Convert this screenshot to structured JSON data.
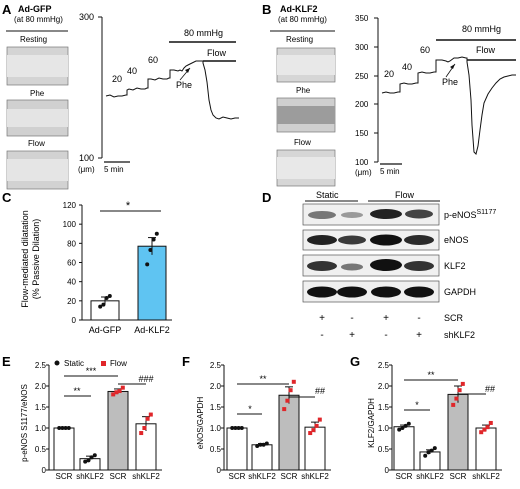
{
  "panels": {
    "A": {
      "letter": "A",
      "condition": "Ad-GFP",
      "pressure_note": "(at 80 mmHg)",
      "images": [
        "Resting",
        "Phe",
        "Flow"
      ],
      "pressure_labels": [
        "20",
        "40",
        "60"
      ],
      "bar_80": "80 mmHg",
      "bar_flow": "Flow",
      "phe": "Phe",
      "y_top": "300",
      "y_bottom": "100",
      "y_unit": "(μm)",
      "scale": "5 min"
    },
    "B": {
      "letter": "B",
      "condition": "Ad-KLF2",
      "pressure_note": "(at 80 mmHg)",
      "images": [
        "Resting",
        "Phe",
        "Flow"
      ],
      "pressure_labels": [
        "20",
        "40",
        "60"
      ],
      "bar_80": "80 mmHg",
      "bar_flow": "Flow",
      "phe": "Phe",
      "y_ticks": [
        "350",
        "300",
        "250",
        "200",
        "150",
        "100"
      ],
      "y_unit": "(μm)",
      "scale": "5 min"
    },
    "C": {
      "letter": "C",
      "ylabel_1": "Flow-mediated dilatation",
      "ylabel_2": "(% Passive Dilation)",
      "y_ticks": [
        "0",
        "20",
        "40",
        "60",
        "80",
        "100",
        "120"
      ],
      "categories": [
        "Ad-GFP",
        "Ad-KLF2"
      ],
      "sig": "*"
    },
    "D": {
      "letter": "D",
      "col_groups": [
        "Static",
        "Flow"
      ],
      "rows": [
        "p-eNOS",
        "eNOS",
        "KLF2",
        "GAPDH"
      ],
      "phospho_site": "S1177",
      "scr_label": "SCR",
      "sh_label": "shKLF2",
      "scr_signs": [
        "+",
        "-",
        "+",
        "-"
      ],
      "sh_signs": [
        "-",
        "+",
        "-",
        "+"
      ]
    },
    "E": {
      "letter": "E",
      "ylabel": "p-eNOS S1177/eNOS",
      "legend": [
        "Static",
        "Flow"
      ],
      "y_ticks": [
        "0",
        "0.5",
        "1.0",
        "1.5",
        "2.0",
        "2.5"
      ],
      "categories": [
        "SCR",
        "shKLF2",
        "SCR",
        "shKLF2"
      ],
      "sig": [
        "**",
        "***",
        "###"
      ]
    },
    "F": {
      "letter": "F",
      "ylabel": "eNOS/GAPDH",
      "y_ticks": [
        "0",
        "0.5",
        "1.0",
        "1.5",
        "2.0",
        "2.5"
      ],
      "categories": [
        "SCR",
        "shKLF2",
        "SCR",
        "shKLF2"
      ],
      "sig": [
        "*",
        "**",
        "##"
      ]
    },
    "G": {
      "letter": "G",
      "ylabel": "KLF2/GAPDH",
      "y_ticks": [
        "0",
        "0.5",
        "1.0",
        "1.5",
        "2.0",
        "2.5"
      ],
      "categories": [
        "SCR",
        "shKLF2",
        "SCR",
        "shKLF2"
      ],
      "sig": [
        "*",
        "**",
        "##"
      ]
    }
  },
  "chart_data": [
    {
      "type": "bar",
      "panel": "C",
      "categories": [
        "Ad-GFP",
        "Ad-KLF2"
      ],
      "values": [
        20,
        77
      ],
      "errors": [
        4,
        9
      ],
      "points": [
        [
          14,
          16,
          23,
          25
        ],
        [
          58,
          73,
          84,
          90
        ]
      ],
      "colors": [
        "#ffffff",
        "#5fc4f2"
      ],
      "ylim": [
        0,
        120
      ]
    },
    {
      "type": "bar",
      "panel": "E",
      "categories": [
        "SCR",
        "shKLF2",
        "SCR",
        "shKLF2"
      ],
      "values": [
        1.0,
        0.27,
        1.87,
        1.1
      ],
      "errors": [
        0.02,
        0.06,
        0.06,
        0.17
      ],
      "points": [
        [
          1,
          1,
          1,
          1
        ],
        [
          0.2,
          0.23,
          0.3,
          0.35
        ],
        [
          1.8,
          1.85,
          1.88,
          1.96
        ],
        [
          0.88,
          1.0,
          1.22,
          1.32
        ]
      ],
      "colors": [
        "#ffffff",
        "#ffffff",
        "#bdbdbd",
        "#ffffff"
      ],
      "ylim": [
        0,
        2.5
      ]
    },
    {
      "type": "bar",
      "panel": "F",
      "categories": [
        "SCR",
        "shKLF2",
        "SCR",
        "shKLF2"
      ],
      "values": [
        1.0,
        0.6,
        1.78,
        1.02
      ],
      "errors": [
        0.02,
        0.03,
        0.2,
        0.12
      ],
      "points": [
        [
          1,
          1,
          1,
          1
        ],
        [
          0.57,
          0.6,
          0.6,
          0.63
        ],
        [
          1.45,
          1.65,
          1.9,
          2.1
        ],
        [
          0.88,
          0.95,
          1.05,
          1.2
        ]
      ],
      "colors": [
        "#ffffff",
        "#ffffff",
        "#bdbdbd",
        "#ffffff"
      ],
      "ylim": [
        0,
        2.5
      ]
    },
    {
      "type": "bar",
      "panel": "G",
      "categories": [
        "SCR",
        "shKLF2",
        "SCR",
        "shKLF2"
      ],
      "values": [
        1.03,
        0.43,
        1.8,
        1.0
      ],
      "errors": [
        0.04,
        0.05,
        0.2,
        0.07
      ],
      "points": [
        [
          0.96,
          1.0,
          1.05,
          1.1
        ],
        [
          0.34,
          0.42,
          0.46,
          0.52
        ],
        [
          1.55,
          1.7,
          1.9,
          2.05
        ],
        [
          0.9,
          0.96,
          1.02,
          1.12
        ]
      ],
      "colors": [
        "#ffffff",
        "#ffffff",
        "#bdbdbd",
        "#ffffff"
      ],
      "ylim": [
        0,
        2.5
      ]
    }
  ],
  "colors": {
    "static_marker": "#111111",
    "flow_marker": "#e0262a",
    "klf2_bar": "#5fc4f2",
    "flow_bar": "#bdbdbd"
  }
}
